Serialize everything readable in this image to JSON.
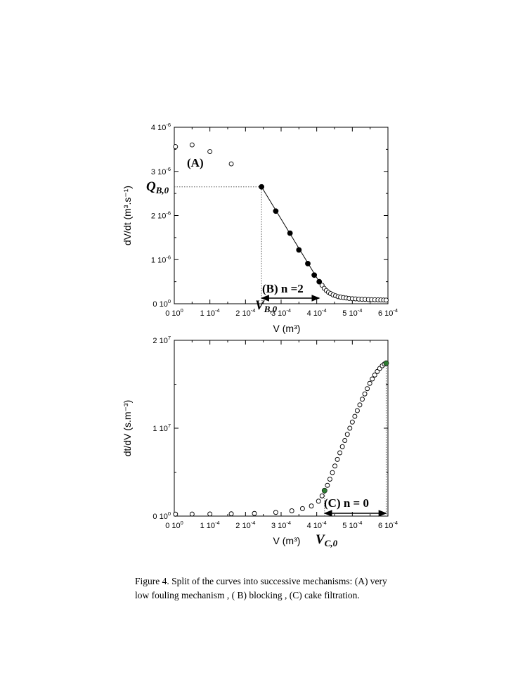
{
  "caption": {
    "line1": "Figure 4. Split of the curves into successive mechanisms: (A) very",
    "line2": "low fouling mechanism , ( B) blocking , (C) cake filtration."
  },
  "chart_data": [
    {
      "type": "scatter",
      "xlabel": "V (m³)",
      "ylabel": "dV/dt (m³.s⁻¹)",
      "xlim": [
        0,
        0.0006
      ],
      "ylim": [
        0,
        4e-06
      ],
      "x_ticks": [
        {
          "v": 0,
          "base": "0 10",
          "exp": "0"
        },
        {
          "v": 0.0001,
          "base": "1 10",
          "exp": "-4"
        },
        {
          "v": 0.0002,
          "base": "2 10",
          "exp": "-4"
        },
        {
          "v": 0.0003,
          "base": "3 10",
          "exp": "-4"
        },
        {
          "v": 0.0004,
          "base": "4 10",
          "exp": "-4"
        },
        {
          "v": 0.0005,
          "base": "5 10",
          "exp": "-4"
        },
        {
          "v": 0.0006,
          "base": "6 10",
          "exp": "-4"
        }
      ],
      "y_ticks": [
        {
          "v": 0,
          "base": "0 10",
          "exp": "0"
        },
        {
          "v": 1e-06,
          "base": "1 10",
          "exp": "-6"
        },
        {
          "v": 2e-06,
          "base": "2 10",
          "exp": "-6"
        },
        {
          "v": 3e-06,
          "base": "3 10",
          "exp": "-6"
        },
        {
          "v": 4e-06,
          "base": "4 10",
          "exp": "-6"
        }
      ],
      "grid": false,
      "series": [
        {
          "marker": "open-circle",
          "color": "#000000",
          "x": [
            3.5e-06,
            5e-05,
            0.0001,
            0.00016,
            0.000415,
            0.000421,
            0.000427,
            0.000433,
            0.000439,
            0.000446,
            0.000453,
            0.00046,
            0.000467,
            0.000475,
            0.000483,
            0.000491,
            0.0005,
            0.000509,
            0.000518,
            0.000527,
            0.000536,
            0.000545,
            0.000554,
            0.000563,
            0.000572,
            0.00058,
            0.000588,
            0.000595
          ],
          "y": [
            3.56e-06,
            3.6e-06,
            3.45e-06,
            3.17e-06,
            4.2e-07,
            3.5e-07,
            3e-07,
            2.6e-07,
            2.3e-07,
            2e-07,
            1.8e-07,
            1.6e-07,
            1.5e-07,
            1.4e-07,
            1.3e-07,
            1.2e-07,
            1.15e-07,
            1.1e-07,
            1.05e-07,
            1e-07,
            9.8e-08,
            9.5e-08,
            9.2e-08,
            9e-08,
            8.8e-08,
            8.6e-08,
            8.4e-08,
            8.2e-08
          ]
        },
        {
          "marker": "filled-circle",
          "color": "#000000",
          "x": [
            0.000245,
            0.000285,
            0.000325,
            0.00035,
            0.000375,
            0.000393,
            0.000407
          ],
          "y": [
            2.65e-06,
            2.1e-06,
            1.6e-06,
            1.22e-06,
            9.1e-07,
            6.5e-07,
            5e-07
          ]
        }
      ],
      "fit_line": {
        "x": [
          0.000245,
          0.000407
        ],
        "y": [
          2.65e-06,
          5e-07
        ]
      },
      "annotations": {
        "a_label": "(A)",
        "q_main": "Q",
        "q_sub": "B,0",
        "q_value": 2.65e-06,
        "b_label": "(B)  n =2",
        "vb_main": "V",
        "vb_sub": "B,0",
        "vb_value": 0.000245,
        "arrow_x": [
          0.000245,
          0.000407
        ]
      }
    },
    {
      "type": "scatter",
      "xlabel": "V (m³)",
      "ylabel": "dt/dV (s.m⁻³)",
      "xlim": [
        0,
        0.0006
      ],
      "ylim": [
        0,
        20000000
      ],
      "x_ticks": [
        {
          "v": 0,
          "base": "0 10",
          "exp": "0"
        },
        {
          "v": 0.0001,
          "base": "1 10",
          "exp": "-4"
        },
        {
          "v": 0.0002,
          "base": "2 10",
          "exp": "-4"
        },
        {
          "v": 0.0003,
          "base": "3 10",
          "exp": "-4"
        },
        {
          "v": 0.0004,
          "base": "4 10",
          "exp": "-4"
        },
        {
          "v": 0.0005,
          "base": "5 10",
          "exp": "-4"
        },
        {
          "v": 0.0006,
          "base": "6 10",
          "exp": "-4"
        }
      ],
      "y_ticks": [
        {
          "v": 0,
          "base": "0 10",
          "exp": "0"
        },
        {
          "v": 10000000,
          "base": "1 10",
          "exp": "7"
        },
        {
          "v": 20000000,
          "base": "2 10",
          "exp": "7"
        }
      ],
      "grid": false,
      "series": [
        {
          "marker": "open-circle",
          "color": "#000000",
          "x": [
            3.5e-06,
            5e-05,
            0.0001,
            0.00016,
            0.000225,
            0.000285,
            0.00033,
            0.00036,
            0.000385,
            0.000405,
            0.000415,
            0.00043,
            0.000437,
            0.000444,
            0.000451,
            0.000458,
            0.000465,
            0.000472,
            0.000479,
            0.000486,
            0.000493,
            0.0005,
            0.000507,
            0.000514,
            0.000521,
            0.000528,
            0.000535,
            0.000542,
            0.000549,
            0.000556,
            0.000563,
            0.00057,
            0.000577,
            0.000584,
            0.00059
          ],
          "y": [
            220000,
            230000,
            240000,
            260000,
            300000,
            420000,
            600000,
            850000,
            1150000,
            1700000,
            2300000,
            3500000,
            4200000,
            4950000,
            5700000,
            6450000,
            7200000,
            7900000,
            8600000,
            9300000,
            10000000,
            10700000,
            11350000,
            12000000,
            12650000,
            13300000,
            13900000,
            14500000,
            15100000,
            15600000,
            16050000,
            16450000,
            16800000,
            17100000,
            17300000
          ]
        },
        {
          "marker": "filled-circle",
          "color": "#2e7d32",
          "x": [
            0.000422,
            0.000595
          ],
          "y": [
            2900000,
            17400000
          ]
        }
      ],
      "annotations": {
        "c_label": "(C)  n = 0",
        "vc_main": "V",
        "vc_sub": "C,0",
        "vc_value": 0.000422,
        "vend_value": 0.000595,
        "arrow_x": [
          0.000422,
          0.000595
        ]
      }
    }
  ]
}
